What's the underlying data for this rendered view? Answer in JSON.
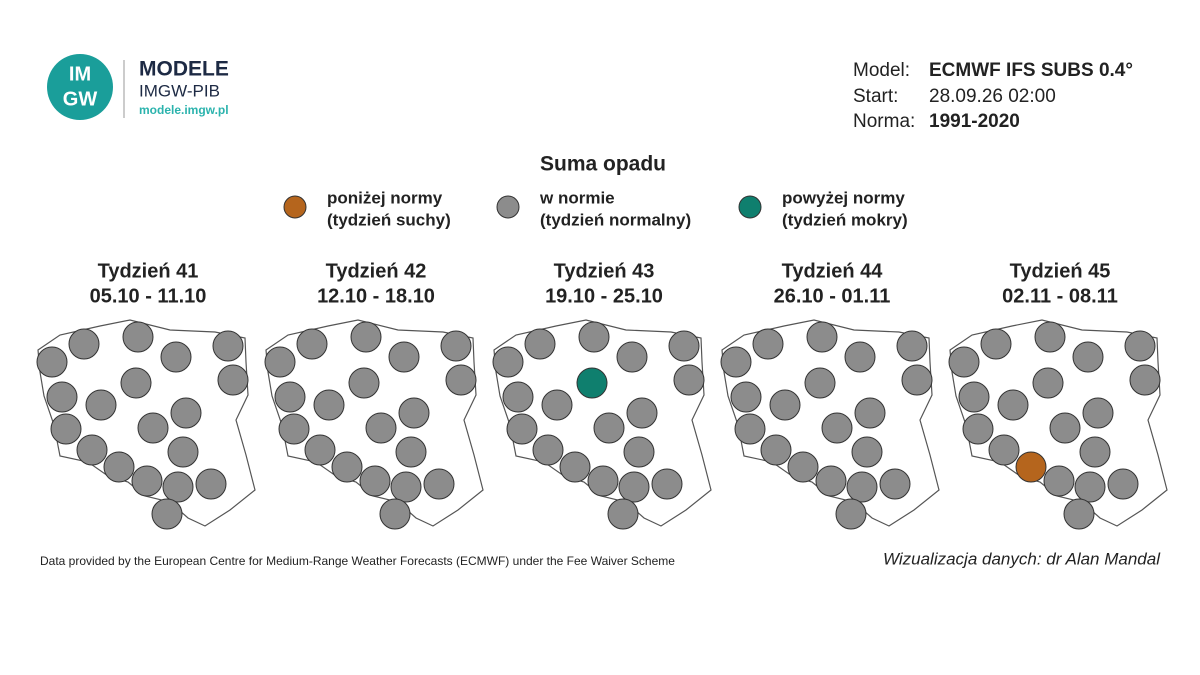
{
  "header": {
    "logo": [
      "IM",
      "GW"
    ],
    "brand": "MODELE",
    "org": "IMGW-PIB",
    "url": "modele.imgw.pl"
  },
  "info": {
    "model_label": "Model:",
    "model": "ECMWF IFS SUBS 0.4°",
    "start_label": "Start:",
    "start": "28.09.26 02:00",
    "norm_label": "Norma:",
    "norm": "1991-2020"
  },
  "title": "Suma opadu",
  "legend": [
    {
      "line1": "poniżej normy",
      "line2": "(tydzień suchy)",
      "color": "#b5651d"
    },
    {
      "line1": "w normie",
      "line2": "(tydzień normalny)",
      "color": "#8c8c8c"
    },
    {
      "line1": "powyżej normy",
      "line2": "(tydzień mokry)",
      "color": "#0f7f6e"
    }
  ],
  "weeks": [
    {
      "title": "Tydzień 41",
      "dates": "05.10 - 11.10",
      "colors": [
        "#8c8c8c",
        "#8c8c8c",
        "#8c8c8c",
        "#8c8c8c",
        "#8c8c8c",
        "#8c8c8c",
        "#8c8c8c",
        "#8c8c8c",
        "#8c8c8c",
        "#8c8c8c",
        "#8c8c8c",
        "#8c8c8c",
        "#8c8c8c",
        "#8c8c8c",
        "#8c8c8c",
        "#8c8c8c",
        "#8c8c8c",
        "#8c8c8c",
        "#8c8c8c"
      ]
    },
    {
      "title": "Tydzień 42",
      "dates": "12.10 - 18.10",
      "colors": [
        "#8c8c8c",
        "#8c8c8c",
        "#8c8c8c",
        "#8c8c8c",
        "#8c8c8c",
        "#8c8c8c",
        "#8c8c8c",
        "#8c8c8c",
        "#8c8c8c",
        "#8c8c8c",
        "#8c8c8c",
        "#8c8c8c",
        "#8c8c8c",
        "#8c8c8c",
        "#8c8c8c",
        "#8c8c8c",
        "#8c8c8c",
        "#8c8c8c",
        "#8c8c8c"
      ]
    },
    {
      "title": "Tydzień 43",
      "dates": "19.10 - 25.10",
      "colors": [
        "#8c8c8c",
        "#8c8c8c",
        "#8c8c8c",
        "#8c8c8c",
        "#8c8c8c",
        "#8c8c8c",
        "#8c8c8c",
        "#0f7f6e",
        "#8c8c8c",
        "#8c8c8c",
        "#8c8c8c",
        "#8c8c8c",
        "#8c8c8c",
        "#8c8c8c",
        "#8c8c8c",
        "#8c8c8c",
        "#8c8c8c",
        "#8c8c8c",
        "#8c8c8c"
      ]
    },
    {
      "title": "Tydzień 44",
      "dates": "26.10 - 01.11",
      "colors": [
        "#8c8c8c",
        "#8c8c8c",
        "#8c8c8c",
        "#8c8c8c",
        "#8c8c8c",
        "#8c8c8c",
        "#8c8c8c",
        "#8c8c8c",
        "#8c8c8c",
        "#8c8c8c",
        "#8c8c8c",
        "#8c8c8c",
        "#8c8c8c",
        "#8c8c8c",
        "#8c8c8c",
        "#8c8c8c",
        "#8c8c8c",
        "#8c8c8c",
        "#8c8c8c"
      ]
    },
    {
      "title": "Tydzień 45",
      "dates": "02.11 - 08.11",
      "colors": [
        "#8c8c8c",
        "#8c8c8c",
        "#8c8c8c",
        "#8c8c8c",
        "#8c8c8c",
        "#8c8c8c",
        "#8c8c8c",
        "#8c8c8c",
        "#8c8c8c",
        "#8c8c8c",
        "#8c8c8c",
        "#8c8c8c",
        "#8c8c8c",
        "#b5651d",
        "#8c8c8c",
        "#8c8c8c",
        "#8c8c8c",
        "#8c8c8c",
        "#8c8c8c"
      ]
    }
  ],
  "footer": {
    "source": "Data provided by the European Centre for Medium-Range Weather Forecasts (ECMWF) under the Fee Waiver Scheme",
    "author": "Wizualizacja danych: dr Alan Mandal"
  }
}
